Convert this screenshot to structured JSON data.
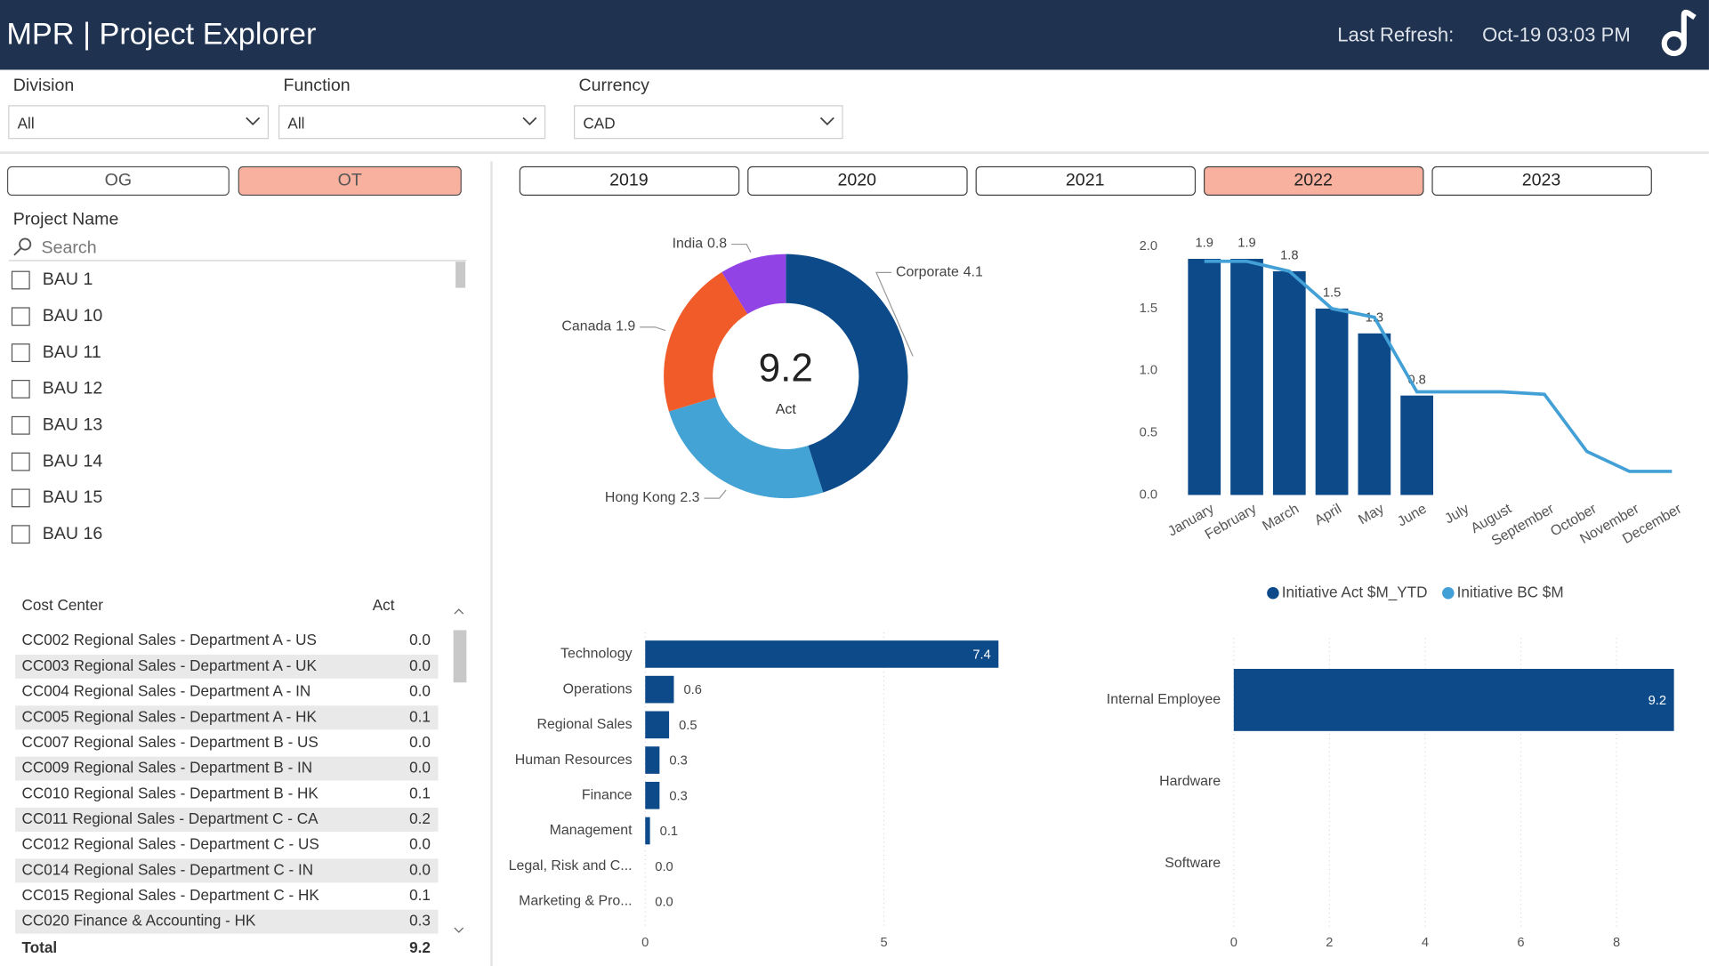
{
  "header": {
    "title": "MPR | Project Explorer",
    "refresh_label": "Last Refresh:",
    "refresh_value": "Oct-19 03:03 PM"
  },
  "filters": [
    {
      "label": "Division",
      "value": "All"
    },
    {
      "label": "Function",
      "value": "All"
    },
    {
      "label": "Currency",
      "value": "CAD"
    }
  ],
  "toggles": {
    "items": [
      "OG",
      "OT"
    ],
    "selected": "OT"
  },
  "years": {
    "items": [
      "2019",
      "2020",
      "2021",
      "2022",
      "2023"
    ],
    "selected": "2022"
  },
  "project_list": {
    "label": "Project Name",
    "search": "Search",
    "items": [
      "BAU 1",
      "BAU 10",
      "BAU 11",
      "BAU 12",
      "BAU 13",
      "BAU 14",
      "BAU 15",
      "BAU 16"
    ]
  },
  "cost_center_table": {
    "columns": [
      "Cost Center",
      "Act"
    ],
    "rows": [
      [
        "CC002 Regional Sales - Department A - US",
        "0.0"
      ],
      [
        "CC003 Regional Sales - Department A - UK",
        "0.0"
      ],
      [
        "CC004 Regional Sales - Department A - IN",
        "0.0"
      ],
      [
        "CC005 Regional Sales - Department A - HK",
        "0.1"
      ],
      [
        "CC007 Regional Sales - Department B - US",
        "0.0"
      ],
      [
        "CC009 Regional Sales - Department B - IN",
        "0.0"
      ],
      [
        "CC010 Regional Sales - Department B - HK",
        "0.1"
      ],
      [
        "CC011 Regional Sales - Department C - CA",
        "0.2"
      ],
      [
        "CC012 Regional Sales - Department C - US",
        "0.0"
      ],
      [
        "CC014 Regional Sales - Department C - IN",
        "0.0"
      ],
      [
        "CC015 Regional Sales - Department C - HK",
        "0.1"
      ],
      [
        "CC020 Finance & Accounting - HK",
        "0.3"
      ]
    ],
    "total": [
      "Total",
      "9.2"
    ]
  },
  "chart_data": [
    {
      "type": "pie",
      "center_value": 9.2,
      "center_label": "Act",
      "categories": [
        "Corporate",
        "Hong Kong",
        "Canada",
        "India"
      ],
      "values": [
        4.1,
        2.3,
        1.9,
        0.8
      ],
      "colors": [
        "#0c4a8a",
        "#44a3d5",
        "#f15b2a",
        "#9143e6"
      ]
    },
    {
      "type": "bar",
      "categories": [
        "January",
        "February",
        "March",
        "April",
        "May",
        "June",
        "July",
        "August",
        "September",
        "October",
        "November",
        "December"
      ],
      "series": [
        {
          "name": "Initiative Act $M_YTD",
          "type": "bar",
          "color": "#0c4a8a",
          "values": [
            1.9,
            1.9,
            1.8,
            1.5,
            1.3,
            0.8,
            null,
            null,
            null,
            null,
            null,
            null
          ]
        },
        {
          "name": "Initiative BC $M",
          "type": "line",
          "color": "#42a0d6",
          "values": [
            1.88,
            1.88,
            1.8,
            1.5,
            1.43,
            0.83,
            0.83,
            0.83,
            0.81,
            0.35,
            0.19,
            0.19
          ]
        }
      ],
      "ylim": [
        0,
        2
      ],
      "yticks": [
        {
          "value": 0,
          "label": "0.0"
        },
        0.5,
        {
          "value": 1,
          "label": "1.0"
        },
        1.5,
        {
          "value": 2,
          "label": "2.0"
        }
      ],
      "legend": "bottom"
    },
    {
      "type": "hbar",
      "categories": [
        "Technology",
        "Operations",
        "Regional Sales",
        "Human Resources",
        "Finance",
        "Management",
        "Legal, Risk and C...",
        "Marketing & Pro..."
      ],
      "values": [
        7.4,
        0.6,
        0.5,
        0.3,
        0.3,
        0.1,
        0,
        0
      ],
      "value_labels": [
        "7.4",
        "0.6",
        "0.5",
        "0.3",
        "0.3",
        "0.1",
        "0.0",
        "0.0"
      ],
      "color": "#0c4a8a",
      "xlim": [
        0,
        7.5
      ],
      "xticks": [
        0,
        5
      ],
      "grid": true
    },
    {
      "type": "hbar",
      "categories": [
        "Internal Employee",
        "Hardware",
        "Software"
      ],
      "values": [
        9.2,
        null,
        null
      ],
      "color": "#0c4a8a",
      "xlim": [
        0,
        9.3
      ],
      "xticks": [
        0,
        2,
        4,
        6,
        8
      ],
      "grid": true
    }
  ]
}
